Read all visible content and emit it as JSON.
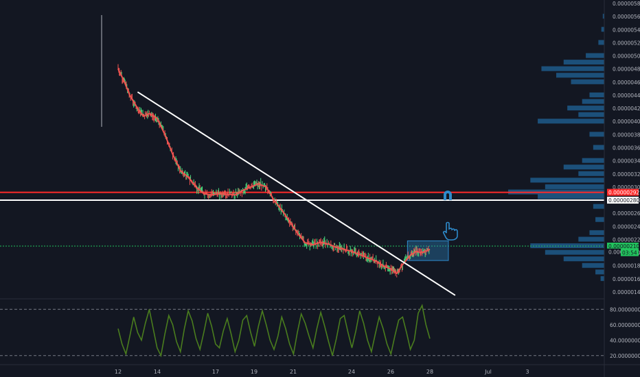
{
  "chart_data": [
    {
      "type": "line",
      "xlabel": "",
      "ylabel": "",
      "x_tick_labels": [
        "12",
        "14",
        "17",
        "19",
        "21",
        "24",
        "26",
        "28",
        "Jul",
        "3"
      ],
      "y_tick_labels": [
        "0.00000580",
        "0.00000560",
        "0.00000540",
        "0.00000520",
        "0.00000500",
        "0.00000480",
        "0.00000460",
        "0.00000440",
        "0.00000420",
        "0.00000400",
        "0.00000380",
        "0.00000360",
        "0.00000340",
        "0.00000320",
        "0.00000300",
        "0.00000280",
        "0.00000260",
        "0.00000240",
        "0.00000220",
        "0.00000200",
        "0.00000180",
        "0.00000160",
        "0.00000140"
      ],
      "ylim": [
        1.35e-06,
        5.85e-06
      ],
      "series": [
        {
          "color": "#ef5350",
          "x": [
            12,
            12.3,
            12.6,
            13,
            13.3,
            13.6,
            14,
            14.4,
            14.8,
            15.2,
            15.6,
            16,
            16.4,
            16.8,
            17.2,
            17.6,
            18,
            18.4,
            18.8,
            19.2,
            19.6,
            20,
            20.4,
            20.8,
            21.2,
            21.6,
            22,
            22.4,
            22.8,
            23.2,
            23.6,
            24,
            24.4,
            24.8,
            25.2,
            25.6,
            26,
            26.3,
            26.6,
            27,
            27.3,
            27.6,
            28
          ],
          "y": [
            4.8e-06,
            4.62e-06,
            4.4e-06,
            4.2e-06,
            4.08e-06,
            4.12e-06,
            4.05e-06,
            3.8e-06,
            3.5e-06,
            3.25e-06,
            3.15e-06,
            3e-06,
            2.9e-06,
            2.88e-06,
            2.9e-06,
            2.89e-06,
            2.88e-06,
            2.95e-06,
            3e-06,
            3.05e-06,
            3e-06,
            2.8e-06,
            2.65e-06,
            2.48e-06,
            2.3e-06,
            2.15e-06,
            2.12e-06,
            2.16e-06,
            2.13e-06,
            2.08e-06,
            2.05e-06,
            2.02e-06,
            1.97e-06,
            1.92e-06,
            1.88e-06,
            1.8e-06,
            1.75e-06,
            1.68e-06,
            1.82e-06,
            1.96e-06,
            2.02e-06,
            2e-06,
            2.05e-06
          ]
        }
      ],
      "trendline": {
        "color": "#ffffff",
        "from": {
          "x": 13,
          "y": 4.45e-06
        },
        "to": {
          "x": 29.3,
          "y": 1.35e-06
        }
      },
      "horizontal_lines": [
        {
          "y": 2.92e-06,
          "color": "#ff2a2a",
          "label": "0.00000292"
        },
        {
          "y": 2.8e-06,
          "color": "#ffffff",
          "label": "0.00000280"
        },
        {
          "y": 2.1e-06,
          "color": "#22c55e",
          "label": "0.00000210",
          "style": "dotted"
        }
      ],
      "price_badges": [
        {
          "label": "0.00000292",
          "bg": "#ff2a2a",
          "fg": "#ffffff"
        },
        {
          "label": "0.00000280",
          "bg": "#ffffff",
          "fg": "#131722"
        },
        {
          "label": "0.00000210",
          "bg": "#22c55e",
          "fg": "#131722"
        },
        {
          "label": "0.00000201",
          "bg": "#131722",
          "fg": "#b2b5be"
        },
        {
          "label": "03:54",
          "bg": "#22c55e",
          "fg": "#131722"
        }
      ],
      "volume_profile": [
        {
          "y": 5.6e-06,
          "v": 0.02
        },
        {
          "y": 5.4e-06,
          "v": 0.04
        },
        {
          "y": 5.2e-06,
          "v": 0.08
        },
        {
          "y": 5e-06,
          "v": 0.25
        },
        {
          "y": 4.9e-06,
          "v": 0.55
        },
        {
          "y": 4.8e-06,
          "v": 0.85
        },
        {
          "y": 4.7e-06,
          "v": 0.65
        },
        {
          "y": 4.6e-06,
          "v": 0.45
        },
        {
          "y": 4.4e-06,
          "v": 0.2
        },
        {
          "y": 4.3e-06,
          "v": 0.3
        },
        {
          "y": 4.2e-06,
          "v": 0.5
        },
        {
          "y": 4.1e-06,
          "v": 0.35
        },
        {
          "y": 4e-06,
          "v": 0.9
        },
        {
          "y": 3.8e-06,
          "v": 0.2
        },
        {
          "y": 3.6e-06,
          "v": 0.15
        },
        {
          "y": 3.4e-06,
          "v": 0.3
        },
        {
          "y": 3.3e-06,
          "v": 0.55
        },
        {
          "y": 3.2e-06,
          "v": 0.35
        },
        {
          "y": 3.1e-06,
          "v": 1.0
        },
        {
          "y": 3e-06,
          "v": 0.8
        },
        {
          "y": 2.92e-06,
          "v": 1.3
        },
        {
          "y": 2.85e-06,
          "v": 0.9
        },
        {
          "y": 2.7e-06,
          "v": 0.15
        },
        {
          "y": 2.5e-06,
          "v": 0.12
        },
        {
          "y": 2.3e-06,
          "v": 0.2
        },
        {
          "y": 2.2e-06,
          "v": 0.35
        },
        {
          "y": 2.1e-06,
          "v": 1.0
        },
        {
          "y": 2e-06,
          "v": 0.8
        },
        {
          "y": 1.9e-06,
          "v": 0.55
        },
        {
          "y": 1.8e-06,
          "v": 0.3
        },
        {
          "y": 1.7e-06,
          "v": 0.12
        },
        {
          "y": 1.6e-06,
          "v": 0.05
        }
      ],
      "rectangle": {
        "x0": 26.85,
        "x1": 28.95,
        "y0": 1.88e-06,
        "y1": 2.18e-06,
        "color": "#2e8bcc"
      }
    },
    {
      "type": "line",
      "xlabel": "",
      "ylabel": "",
      "y_tick_labels": [
        "80.00000000",
        "60.00000000",
        "40.00000000",
        "20.00000000"
      ],
      "ylim": [
        10,
        90
      ],
      "reference_lines": [
        80,
        20
      ],
      "series": [
        {
          "color": "#4a7d1e",
          "x": [
            12.0,
            12.2,
            12.4,
            12.6,
            12.8,
            13.0,
            13.2,
            13.4,
            13.6,
            13.8,
            14.0,
            14.2,
            14.4,
            14.6,
            14.8,
            15.0,
            15.2,
            15.4,
            15.6,
            15.8,
            16.0,
            16.2,
            16.4,
            16.6,
            16.8,
            17.0,
            17.2,
            17.4,
            17.6,
            17.8,
            18.0,
            18.2,
            18.4,
            18.6,
            18.8,
            19.0,
            19.2,
            19.4,
            19.6,
            19.8,
            20.0,
            20.2,
            20.4,
            20.6,
            20.8,
            21.0,
            21.2,
            21.4,
            21.6,
            21.8,
            22.0,
            22.2,
            22.4,
            22.6,
            22.8,
            23.0,
            23.2,
            23.4,
            23.6,
            23.8,
            24.0,
            24.2,
            24.4,
            24.6,
            24.8,
            25.0,
            25.2,
            25.4,
            25.6,
            25.8,
            26.0,
            26.2,
            26.4,
            26.6,
            26.8,
            27.0,
            27.2,
            27.4,
            27.6,
            27.8,
            28.0
          ],
          "y": [
            55,
            35,
            22,
            45,
            70,
            50,
            40,
            62,
            80,
            55,
            30,
            20,
            48,
            72,
            60,
            38,
            25,
            55,
            78,
            65,
            42,
            28,
            50,
            75,
            58,
            35,
            30,
            52,
            68,
            48,
            25,
            40,
            66,
            72,
            50,
            32,
            58,
            78,
            60,
            40,
            28,
            45,
            70,
            55,
            35,
            22,
            50,
            74,
            62,
            45,
            30,
            55,
            76,
            58,
            38,
            20,
            42,
            68,
            72,
            50,
            30,
            52,
            78,
            62,
            40,
            25,
            48,
            70,
            55,
            35,
            22,
            45,
            66,
            70,
            50,
            28,
            40,
            75,
            85,
            60,
            42
          ]
        }
      ]
    }
  ]
}
